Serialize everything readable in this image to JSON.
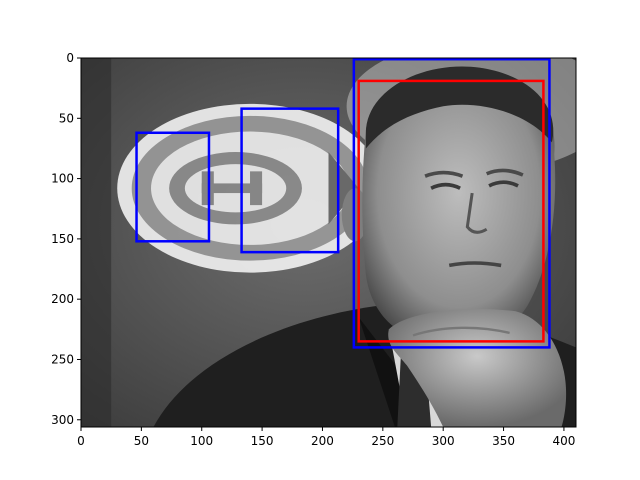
{
  "chart_data": {
    "type": "image_with_boxes",
    "image": {
      "description_kind": "grayscale photograph",
      "width": 410,
      "height": 306,
      "colormap": "gray"
    },
    "xlim": [
      0,
      410
    ],
    "ylim": [
      306,
      0
    ],
    "xticks": [
      0,
      50,
      100,
      150,
      200,
      250,
      300,
      350,
      400
    ],
    "yticks": [
      0,
      50,
      100,
      150,
      200,
      250,
      300
    ],
    "xtick_labels": [
      "0",
      "50",
      "100",
      "150",
      "200",
      "250",
      "300",
      "350",
      "400"
    ],
    "ytick_labels": [
      "0",
      "50",
      "100",
      "150",
      "200",
      "250",
      "300"
    ],
    "boxes": [
      {
        "color": "#0000ff",
        "x0": 46,
        "y0": 62,
        "x1": 106,
        "y1": 152
      },
      {
        "color": "#0000ff",
        "x0": 133,
        "y0": 42,
        "x1": 213,
        "y1": 161
      },
      {
        "color": "#0000ff",
        "x0": 226,
        "y0": 1,
        "x1": 388,
        "y1": 240
      },
      {
        "color": "#ff0000",
        "x0": 230,
        "y0": 19,
        "x1": 383,
        "y1": 235
      }
    ],
    "title": "",
    "xlabel": "",
    "ylabel": ""
  }
}
